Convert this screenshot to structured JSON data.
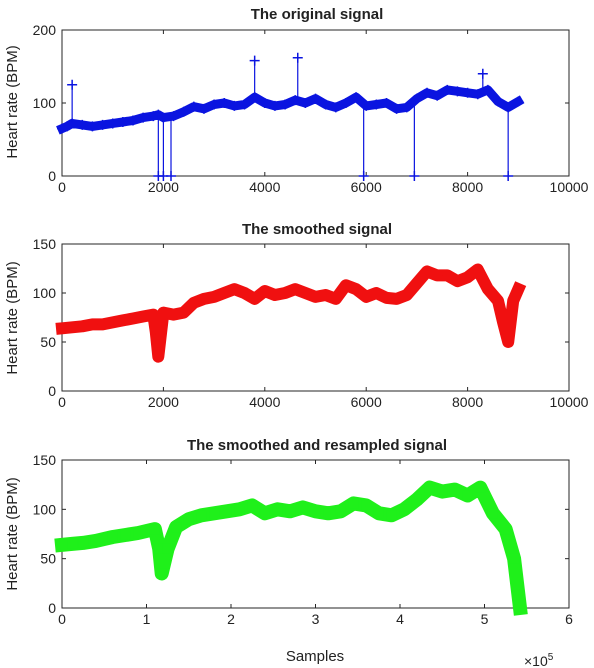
{
  "chart_data": [
    {
      "type": "line",
      "title": "The original signal",
      "ylabel": "Heart rate (BPM)",
      "xlabel": "",
      "xlim": [
        0,
        10000
      ],
      "ylim": [
        0,
        200
      ],
      "xticks": [
        "0",
        "2000",
        "4000",
        "6000",
        "8000",
        "10000"
      ],
      "yticks": [
        "0",
        "100",
        "200"
      ],
      "marker": "+",
      "color": "#0a14e0",
      "grid": false,
      "series": [
        {
          "x": [
            0,
            100,
            200,
            400,
            600,
            800,
            1000,
            1200,
            1400,
            1600,
            1800,
            1900,
            2000,
            2200,
            2400,
            2600,
            2800,
            3000,
            3200,
            3400,
            3600,
            3800,
            4000,
            4200,
            4400,
            4600,
            4800,
            5000,
            5200,
            5400,
            5600,
            5800,
            6000,
            6200,
            6400,
            6600,
            6800,
            7000,
            7200,
            7400,
            7600,
            7800,
            8000,
            8200,
            8400,
            8600,
            8800,
            9000
          ],
          "y": [
            65,
            68,
            72,
            70,
            68,
            70,
            72,
            74,
            76,
            80,
            82,
            84,
            80,
            82,
            88,
            95,
            92,
            98,
            100,
            96,
            98,
            108,
            100,
            96,
            98,
            104,
            100,
            106,
            98,
            94,
            100,
            108,
            96,
            98,
            100,
            92,
            94,
            106,
            114,
            110,
            118,
            116,
            114,
            112,
            118,
            102,
            94,
            102
          ]
        }
      ],
      "spikes": [
        {
          "x": 200,
          "y": 125
        },
        {
          "x": 1900,
          "y": 0
        },
        {
          "x": 2000,
          "y": 0
        },
        {
          "x": 2150,
          "y": 0
        },
        {
          "x": 3800,
          "y": 158
        },
        {
          "x": 4650,
          "y": 162
        },
        {
          "x": 5950,
          "y": 0
        },
        {
          "x": 6950,
          "y": 0
        },
        {
          "x": 8300,
          "y": 140
        },
        {
          "x": 8800,
          "y": 0
        }
      ]
    },
    {
      "type": "line",
      "title": "The smoothed signal",
      "ylabel": "Heart rate (BPM)",
      "xlabel": "",
      "xlim": [
        0,
        10000
      ],
      "ylim": [
        0,
        150
      ],
      "xticks": [
        "0",
        "2000",
        "4000",
        "6000",
        "8000",
        "10000"
      ],
      "yticks": [
        "0",
        "50",
        "100",
        "150"
      ],
      "marker": "+",
      "color": "#f01010",
      "grid": false,
      "series": [
        {
          "x": [
            0,
            200,
            400,
            600,
            800,
            1000,
            1200,
            1400,
            1600,
            1800,
            1850,
            1900,
            1950,
            2000,
            2200,
            2400,
            2600,
            2800,
            3000,
            3200,
            3400,
            3600,
            3800,
            4000,
            4200,
            4400,
            4600,
            4800,
            5000,
            5200,
            5400,
            5600,
            5800,
            6000,
            6200,
            6400,
            6600,
            6800,
            7000,
            7200,
            7400,
            7600,
            7800,
            8000,
            8200,
            8400,
            8600,
            8700,
            8800,
            8900,
            9000
          ],
          "y": [
            64,
            65,
            66,
            68,
            68,
            70,
            72,
            74,
            76,
            78,
            60,
            35,
            58,
            80,
            78,
            80,
            90,
            94,
            96,
            100,
            104,
            100,
            94,
            102,
            98,
            100,
            104,
            100,
            96,
            98,
            94,
            108,
            104,
            96,
            100,
            95,
            94,
            98,
            110,
            122,
            118,
            118,
            112,
            116,
            124,
            104,
            92,
            70,
            50,
            92,
            104
          ]
        }
      ]
    },
    {
      "type": "line",
      "title": "The smoothed and resampled signal",
      "ylabel": "Heart rate (BPM)",
      "xlabel": "Samples",
      "xlim": [
        0,
        6
      ],
      "ylim": [
        0,
        150
      ],
      "xticks": [
        "0",
        "1",
        "2",
        "3",
        "4",
        "5",
        "6"
      ],
      "yticks": [
        "0",
        "50",
        "100",
        "150"
      ],
      "x_multiplier": "×10",
      "x_multiplier_exp": "5",
      "marker": "square",
      "color": "#1ff01a",
      "grid": false,
      "series": [
        {
          "x": [
            0,
            0.12,
            0.25,
            0.4,
            0.5,
            0.6,
            0.75,
            0.9,
            1.0,
            1.1,
            1.15,
            1.18,
            1.25,
            1.35,
            1.5,
            1.65,
            1.8,
            1.95,
            2.1,
            2.25,
            2.4,
            2.55,
            2.7,
            2.85,
            3.0,
            3.15,
            3.3,
            3.45,
            3.6,
            3.75,
            3.9,
            4.05,
            4.2,
            4.35,
            4.5,
            4.65,
            4.8,
            4.95,
            5.1,
            5.25,
            5.35,
            5.42
          ],
          "y": [
            64,
            65,
            66,
            68,
            70,
            72,
            74,
            76,
            78,
            80,
            60,
            35,
            60,
            82,
            90,
            94,
            96,
            98,
            100,
            104,
            96,
            100,
            98,
            102,
            98,
            96,
            98,
            106,
            104,
            96,
            94,
            100,
            110,
            122,
            118,
            120,
            114,
            122,
            96,
            80,
            50,
            0
          ]
        }
      ]
    }
  ]
}
